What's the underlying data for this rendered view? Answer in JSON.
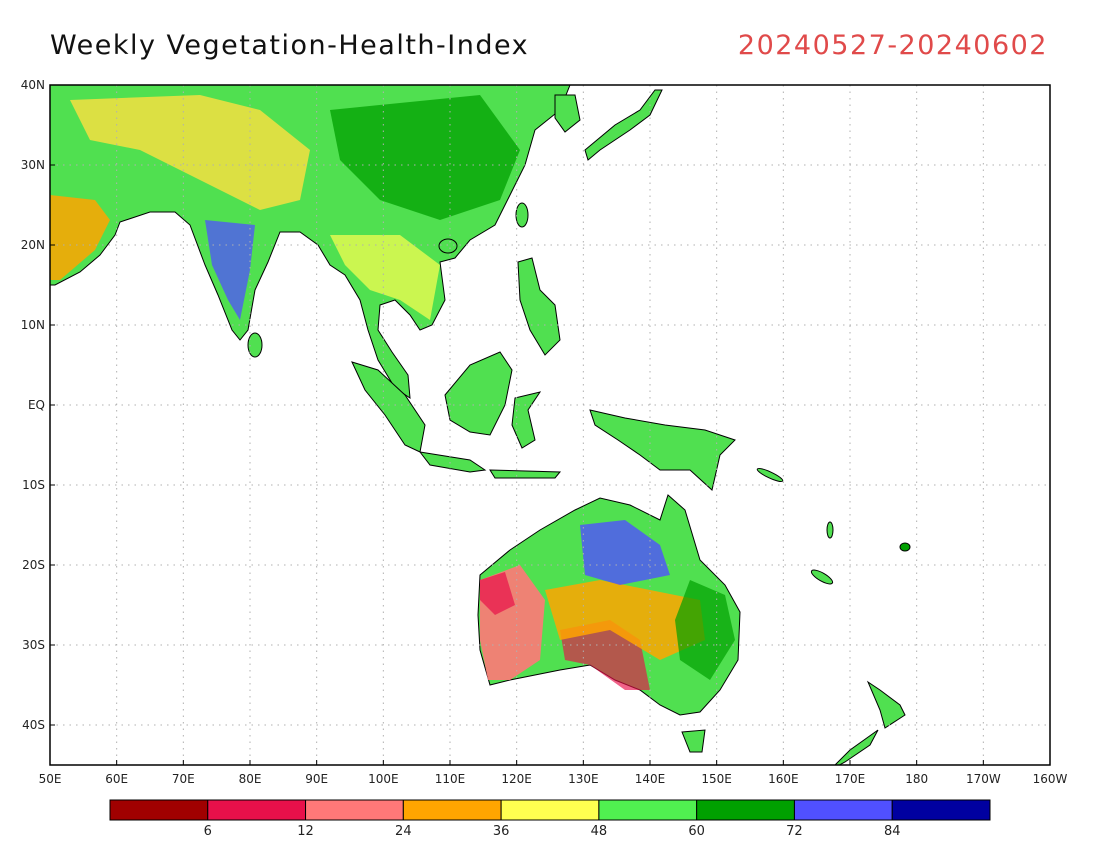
{
  "title": "Weekly Vegetation-Health-Index",
  "date_range": "20240527-20240602",
  "lat_labels": [
    "40N",
    "30N",
    "20N",
    "10N",
    "EQ",
    "10S",
    "20S",
    "30S",
    "40S"
  ],
  "lon_labels": [
    "50E",
    "60E",
    "70E",
    "80E",
    "90E",
    "100E",
    "110E",
    "120E",
    "130E",
    "140E",
    "150E",
    "160E",
    "170E",
    "180",
    "170W",
    "160W"
  ],
  "legend": {
    "colors": [
      "#a00000",
      "#e8104a",
      "#ff7878",
      "#ffa500",
      "#ffff50",
      "#50f050",
      "#00a000",
      "#5050ff",
      "#0000a0"
    ],
    "labels": [
      "6",
      "12",
      "24",
      "36",
      "48",
      "60",
      "72",
      "84"
    ]
  },
  "map_colors": {
    "ocean": "#ffffff",
    "coast": "#000000",
    "grid": "#b0b0b0"
  }
}
